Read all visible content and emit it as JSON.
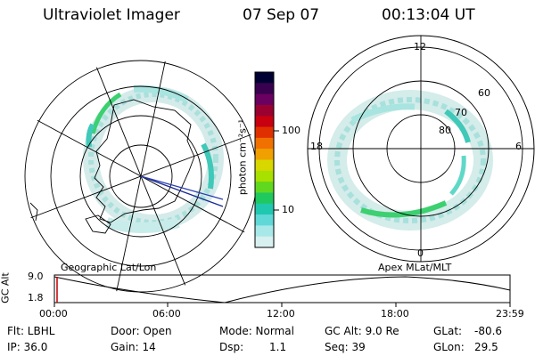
{
  "header": {
    "title": "Ultraviolet Imager",
    "date": "07 Sep 07",
    "time": "00:13:04 UT"
  },
  "colorbar": {
    "unit_label": "photon cm⁻²s⁻¹",
    "ticks": [
      "100",
      "10"
    ],
    "colors": [
      "#000033",
      "#3a0050",
      "#6a0060",
      "#9a0030",
      "#c80010",
      "#e03000",
      "#f07000",
      "#f0a000",
      "#d8d800",
      "#a8e000",
      "#60d820",
      "#20c860",
      "#20c8b0",
      "#60d8d8",
      "#a8e8e8",
      "#d8f0f0"
    ]
  },
  "left_map": {
    "label": "Geographic Lat/Lon"
  },
  "right_map": {
    "label": "Apex MLat/MLT",
    "mlt_labels": {
      "top": "12",
      "left": "18",
      "right": "6",
      "bottom": "0"
    },
    "lat_labels": [
      "60",
      "70",
      "80"
    ]
  },
  "altitude_plot": {
    "ylabel": "GC Alt",
    "yticks": [
      "9.0",
      "1.8"
    ],
    "xticks": [
      "00:00",
      "06:00",
      "12:00",
      "18:00",
      "23:59"
    ]
  },
  "status": {
    "flt": "Flt: LBHL",
    "ip": "IP: 36.0",
    "door": "Door: Open",
    "gain": "Gain: 14",
    "mode": "Mode: Normal",
    "dsp_label": "Dsp:",
    "dsp_value": "1.1",
    "gc_alt": "GC Alt: 9.0 Re",
    "seq": "Seq: 39",
    "glat_label": "GLat:",
    "glat_value": "-80.6",
    "glon_label": "GLon:",
    "glon_value": "29.5"
  }
}
